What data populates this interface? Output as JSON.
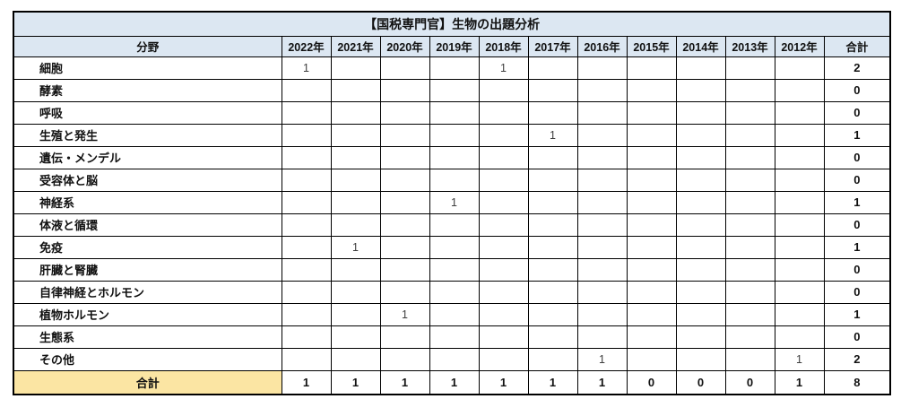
{
  "title": "【国税専門官】生物の出題分析",
  "table": {
    "field_header": "分野",
    "total_header": "合計",
    "years": [
      "2022年",
      "2021年",
      "2020年",
      "2019年",
      "2018年",
      "2017年",
      "2016年",
      "2015年",
      "2014年",
      "2013年",
      "2012年"
    ],
    "rows": [
      {
        "label": "細胞",
        "values": [
          "1",
          "",
          "",
          "",
          "1",
          "",
          "",
          "",
          "",
          "",
          ""
        ],
        "total": "2"
      },
      {
        "label": "酵素",
        "values": [
          "",
          "",
          "",
          "",
          "",
          "",
          "",
          "",
          "",
          "",
          ""
        ],
        "total": "0"
      },
      {
        "label": "呼吸",
        "values": [
          "",
          "",
          "",
          "",
          "",
          "",
          "",
          "",
          "",
          "",
          ""
        ],
        "total": "0"
      },
      {
        "label": "生殖と発生",
        "values": [
          "",
          "",
          "",
          "",
          "",
          "1",
          "",
          "",
          "",
          "",
          ""
        ],
        "total": "1"
      },
      {
        "label": "遺伝・メンデル",
        "values": [
          "",
          "",
          "",
          "",
          "",
          "",
          "",
          "",
          "",
          "",
          ""
        ],
        "total": "0"
      },
      {
        "label": "受容体と脳",
        "values": [
          "",
          "",
          "",
          "",
          "",
          "",
          "",
          "",
          "",
          "",
          ""
        ],
        "total": "0"
      },
      {
        "label": "神経系",
        "values": [
          "",
          "",
          "",
          "1",
          "",
          "",
          "",
          "",
          "",
          "",
          ""
        ],
        "total": "1"
      },
      {
        "label": "体液と循環",
        "values": [
          "",
          "",
          "",
          "",
          "",
          "",
          "",
          "",
          "",
          "",
          ""
        ],
        "total": "0"
      },
      {
        "label": "免疫",
        "values": [
          "",
          "1",
          "",
          "",
          "",
          "",
          "",
          "",
          "",
          "",
          ""
        ],
        "total": "1"
      },
      {
        "label": "肝臓と腎臓",
        "values": [
          "",
          "",
          "",
          "",
          "",
          "",
          "",
          "",
          "",
          "",
          ""
        ],
        "total": "0"
      },
      {
        "label": "自律神経とホルモン",
        "values": [
          "",
          "",
          "",
          "",
          "",
          "",
          "",
          "",
          "",
          "",
          ""
        ],
        "total": "0"
      },
      {
        "label": "植物ホルモン",
        "values": [
          "",
          "",
          "1",
          "",
          "",
          "",
          "",
          "",
          "",
          "",
          ""
        ],
        "total": "1"
      },
      {
        "label": "生態系",
        "values": [
          "",
          "",
          "",
          "",
          "",
          "",
          "",
          "",
          "",
          "",
          ""
        ],
        "total": "0"
      },
      {
        "label": "その他",
        "values": [
          "",
          "",
          "",
          "",
          "",
          "",
          "1",
          "",
          "",
          "",
          "1"
        ],
        "total": "2"
      }
    ],
    "footer": {
      "label": "合計",
      "values": [
        "1",
        "1",
        "1",
        "1",
        "1",
        "1",
        "1",
        "0",
        "0",
        "0",
        "1"
      ],
      "total": "8"
    }
  },
  "colors": {
    "header_bg": "#dce7f2",
    "footer_label_bg": "#fbe5a3",
    "border": "#000000"
  }
}
